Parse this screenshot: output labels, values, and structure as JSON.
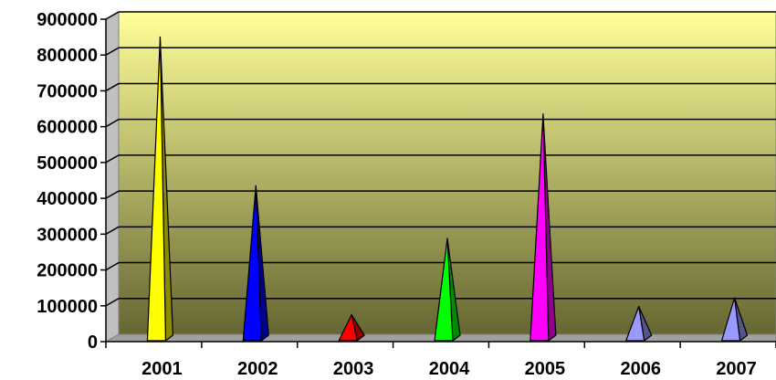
{
  "chart_data": {
    "type": "bar",
    "style": "3d-pyramid",
    "title": "",
    "xlabel": "",
    "ylabel": "",
    "categories": [
      "2001",
      "2002",
      "2003",
      "2004",
      "2005",
      "2006",
      "2007"
    ],
    "values": [
      840000,
      425000,
      65000,
      278000,
      625000,
      88000,
      112000
    ],
    "colors": [
      "#ffff00",
      "#0000ff",
      "#ff0000",
      "#00ff00",
      "#ff00ff",
      "#9999ff",
      "#9999ff"
    ],
    "ylim": [
      0,
      900000
    ],
    "yticks": [
      "0",
      "100000",
      "200000",
      "300000",
      "400000",
      "500000",
      "600000",
      "700000",
      "800000",
      "900000"
    ],
    "grid": true,
    "legend": "none",
    "background_gradient": [
      "#ffff99",
      "#666633"
    ]
  }
}
